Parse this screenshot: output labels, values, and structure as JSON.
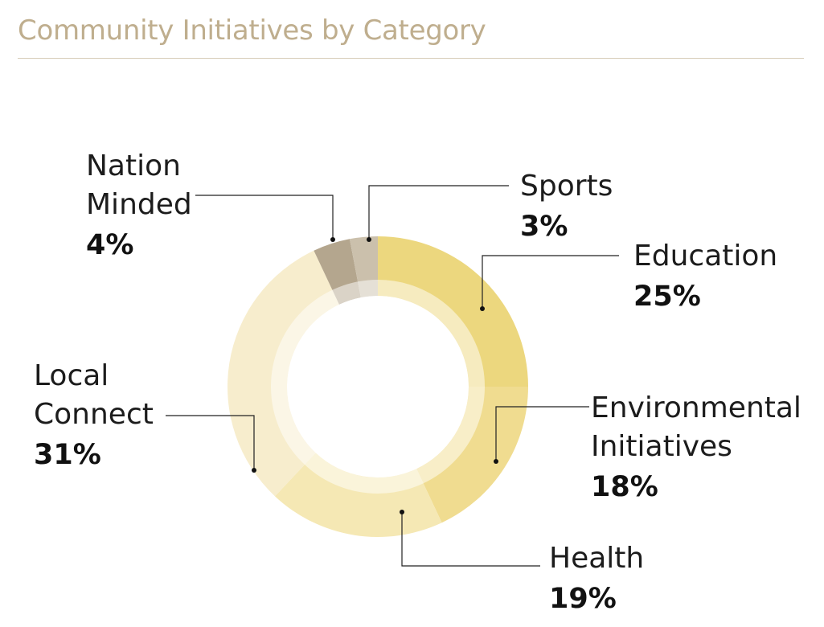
{
  "chart_data": {
    "type": "pie",
    "variant": "donut",
    "title": "Community Initiatives by Category",
    "categories": [
      "Education",
      "Environmental Initiatives",
      "Health",
      "Local Connect",
      "Nation Minded",
      "Sports"
    ],
    "label_lines": [
      [
        "Education"
      ],
      [
        "Environmental",
        "Initiatives"
      ],
      [
        "Health"
      ],
      [
        "Local",
        "Connect"
      ],
      [
        "Nation",
        "Minded"
      ],
      [
        "Sports"
      ]
    ],
    "values": [
      25,
      18,
      19,
      31,
      4,
      3
    ],
    "value_labels": [
      "25%",
      "18%",
      "19%",
      "31%",
      "4%",
      "3%"
    ],
    "colors": [
      "#ecd77e",
      "#f0dc90",
      "#f5e8b4",
      "#f7edcd",
      "#b4a68e",
      "#cbc0ac"
    ],
    "start_angle_deg": 0,
    "direction": "clockwise",
    "legend": "none"
  }
}
